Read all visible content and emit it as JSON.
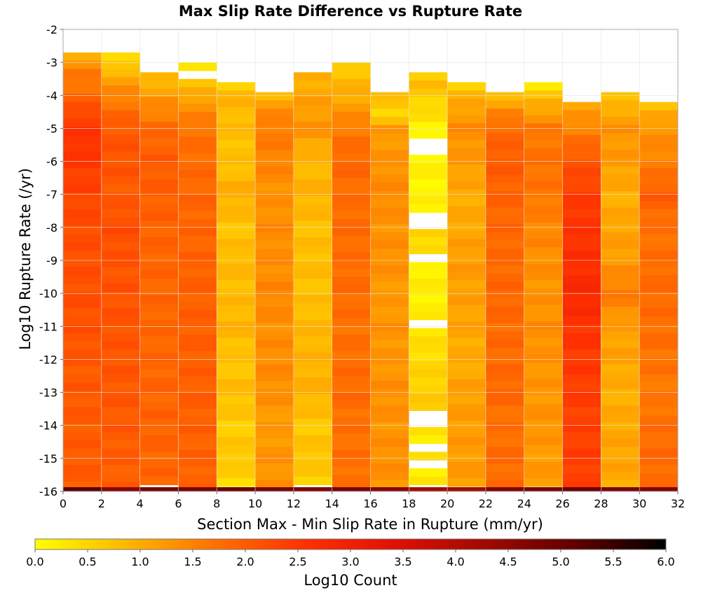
{
  "chart_data": {
    "type": "heatmap",
    "title": "Max Slip Rate Difference vs Rupture Rate",
    "xlabel": "Section Max - Min Slip Rate in Rupture (mm/yr)",
    "ylabel": "Log10 Rupture Rate (/yr)",
    "xlim": [
      0,
      32
    ],
    "ylim": [
      -16,
      -2
    ],
    "x_ticks": [
      "0",
      "2",
      "4",
      "6",
      "8",
      "10",
      "12",
      "14",
      "16",
      "18",
      "20",
      "22",
      "24",
      "26",
      "28",
      "30",
      "32"
    ],
    "y_ticks": [
      "-2",
      "-3",
      "-4",
      "-5",
      "-6",
      "-7",
      "-8",
      "-9",
      "-10",
      "-11",
      "-12",
      "-13",
      "-14",
      "-15",
      "-16"
    ],
    "grid": true,
    "x_bin_width": 2,
    "y_bin_width": 0.25,
    "colorbar": {
      "label": "Log10 Count",
      "range": [
        0,
        6
      ],
      "ticks": [
        "0.0",
        "0.5",
        "1.0",
        "1.5",
        "2.0",
        "2.5",
        "3.0",
        "3.5",
        "4.0",
        "4.5",
        "5.0",
        "5.5",
        "6.0"
      ],
      "colors": [
        "#ffff00",
        "#ffb800",
        "#ff7000",
        "#ff3000",
        "#e01000",
        "#a00a00",
        "#600000",
        "#000000"
      ]
    },
    "columns": [
      {
        "x": 1,
        "top": -2.7,
        "profile": [
          [
            -2.7,
            0.9
          ],
          [
            -3.2,
            1.5
          ],
          [
            -4,
            1.8
          ],
          [
            -4.5,
            2.3
          ],
          [
            -5.5,
            2.6
          ],
          [
            -6.5,
            2.35
          ],
          [
            -8,
            2.2
          ],
          [
            -9,
            2.15
          ],
          [
            -11,
            2.15
          ],
          [
            -12,
            2.05
          ],
          [
            -14,
            2.0
          ],
          [
            -15.9,
            2.0
          ]
        ]
      },
      {
        "x": 3,
        "top": -2.7,
        "profile": [
          [
            -2.7,
            0.2
          ],
          [
            -3.3,
            0.9
          ],
          [
            -4,
            1.5
          ],
          [
            -5,
            2.05
          ],
          [
            -6,
            2.1
          ],
          [
            -7,
            2.0
          ],
          [
            -8,
            2.2
          ],
          [
            -9,
            2.1
          ],
          [
            -11,
            2.1
          ],
          [
            -13,
            2.05
          ],
          [
            -15.9,
            1.95
          ]
        ]
      },
      {
        "x": 5,
        "top": -3.3,
        "profile": [
          [
            -3.3,
            0.7
          ],
          [
            -4,
            1.2
          ],
          [
            -5,
            1.8
          ],
          [
            -6,
            2.0
          ],
          [
            -8,
            1.9
          ],
          [
            -10,
            1.85
          ],
          [
            -12,
            1.85
          ],
          [
            -14,
            1.9
          ],
          [
            -15.9,
            1.85
          ]
        ]
      },
      {
        "x": 7,
        "top": -3.0,
        "profile": [
          [
            -3.0,
            0.3
          ],
          [
            -3.3,
            null
          ],
          [
            -3.6,
            0.6
          ],
          [
            -4,
            1.1
          ],
          [
            -5,
            1.7
          ],
          [
            -7,
            1.85
          ],
          [
            -9,
            1.9
          ],
          [
            -11,
            1.95
          ],
          [
            -13,
            1.95
          ],
          [
            -15.9,
            1.9
          ]
        ]
      },
      {
        "x": 9,
        "top": -3.6,
        "profile": [
          [
            -3.6,
            0.5
          ],
          [
            -4,
            0.9
          ],
          [
            -5,
            0.8
          ],
          [
            -6,
            0.75
          ],
          [
            -7,
            1.0
          ],
          [
            -8,
            0.7
          ],
          [
            -9,
            0.85
          ],
          [
            -10,
            0.8
          ],
          [
            -11,
            0.9
          ],
          [
            -12,
            0.7
          ],
          [
            -13,
            0.8
          ],
          [
            -14,
            0.6
          ],
          [
            -15,
            0.7
          ],
          [
            -15.9,
            0.4
          ]
        ]
      },
      {
        "x": 11,
        "top": -3.9,
        "profile": [
          [
            -3.9,
            0.6
          ],
          [
            -4.2,
            1.2
          ],
          [
            -5,
            1.6
          ],
          [
            -6,
            1.5
          ],
          [
            -7,
            1.3
          ],
          [
            -8,
            1.4
          ],
          [
            -9,
            1.35
          ],
          [
            -10,
            1.45
          ],
          [
            -11,
            1.35
          ],
          [
            -12,
            1.4
          ],
          [
            -13,
            1.35
          ],
          [
            -14,
            1.2
          ],
          [
            -15,
            1.3
          ],
          [
            -15.9,
            1.3
          ]
        ]
      },
      {
        "x": 13,
        "top": -3.3,
        "profile": [
          [
            -3.3,
            0.9
          ],
          [
            -4,
            1.1
          ],
          [
            -5,
            1.3
          ],
          [
            -6,
            0.85
          ],
          [
            -7,
            0.95
          ],
          [
            -8,
            0.75
          ],
          [
            -9,
            0.8
          ],
          [
            -10,
            0.75
          ],
          [
            -11,
            0.85
          ],
          [
            -12,
            0.9
          ],
          [
            -13,
            0.95
          ],
          [
            -14,
            0.65
          ],
          [
            -15,
            0.75
          ],
          [
            -15.9,
            0.5
          ]
        ]
      },
      {
        "x": 15,
        "top": -3.0,
        "profile": [
          [
            -3.0,
            0.6
          ],
          [
            -4,
            1.0
          ],
          [
            -5,
            1.6
          ],
          [
            -6,
            1.85
          ],
          [
            -7,
            1.75
          ],
          [
            -8,
            1.8
          ],
          [
            -9,
            1.75
          ],
          [
            -10,
            1.8
          ],
          [
            -11,
            1.7
          ],
          [
            -12,
            1.75
          ],
          [
            -13,
            1.8
          ],
          [
            -14,
            1.7
          ],
          [
            -15,
            1.75
          ],
          [
            -15.9,
            1.7
          ]
        ]
      },
      {
        "x": 17,
        "top": -3.9,
        "profile": [
          [
            -3.9,
            0.8
          ],
          [
            -4.6,
            0.5
          ],
          [
            -5,
            1.2
          ],
          [
            -6,
            1.3
          ],
          [
            -7,
            1.4
          ],
          [
            -8,
            1.3
          ],
          [
            -9,
            1.35
          ],
          [
            -10,
            1.2
          ],
          [
            -11,
            1.3
          ],
          [
            -12,
            1.25
          ],
          [
            -13,
            1.35
          ],
          [
            -14,
            1.3
          ],
          [
            -15,
            1.35
          ],
          [
            -15.9,
            1.3
          ]
        ]
      },
      {
        "x": 19,
        "top": -3.3,
        "profile": [
          [
            -3.3,
            0.5
          ],
          [
            -3.6,
            0.8
          ],
          [
            -4.5,
            0.4
          ],
          [
            -5.0,
            0.15
          ],
          [
            -5.3,
            null
          ],
          [
            -5.75,
            0.2
          ],
          [
            -6.2,
            0.15
          ],
          [
            -7.5,
            null
          ],
          [
            -8.1,
            0.5
          ],
          [
            -8.8,
            null
          ],
          [
            -9.0,
            0.2
          ],
          [
            -10.8,
            null
          ],
          [
            -11.0,
            0.3
          ],
          [
            -13.0,
            0.6
          ],
          [
            -13.5,
            null
          ],
          [
            -14.0,
            0.3
          ],
          [
            -14.5,
            null
          ],
          [
            -14.75,
            0.3
          ],
          [
            -15.0,
            null
          ],
          [
            -15.25,
            0.25
          ]
        ]
      },
      {
        "x": 21,
        "top": -3.6,
        "profile": [
          [
            -3.6,
            0.5
          ],
          [
            -4,
            0.9
          ],
          [
            -5,
            1.4
          ],
          [
            -6,
            1.2
          ],
          [
            -7,
            1.0
          ],
          [
            -8,
            1.05
          ],
          [
            -9,
            1.2
          ],
          [
            -10,
            1.15
          ],
          [
            -11,
            1.1
          ],
          [
            -12,
            1.0
          ],
          [
            -13,
            1.15
          ],
          [
            -14,
            1.2
          ],
          [
            -15.9,
            1.2
          ]
        ]
      },
      {
        "x": 23,
        "top": -3.9,
        "profile": [
          [
            -3.9,
            0.7
          ],
          [
            -4.5,
            1.4
          ],
          [
            -5,
            1.8
          ],
          [
            -6,
            2.0
          ],
          [
            -7,
            1.9
          ],
          [
            -8,
            1.85
          ],
          [
            -9,
            1.8
          ],
          [
            -10,
            1.85
          ],
          [
            -11,
            1.8
          ],
          [
            -12,
            1.8
          ],
          [
            -13,
            1.85
          ],
          [
            -14,
            1.7
          ],
          [
            -15,
            1.8
          ],
          [
            -15.9,
            1.75
          ]
        ]
      },
      {
        "x": 25,
        "top": -3.6,
        "profile": [
          [
            -3.6,
            0.2
          ],
          [
            -4.2,
            0.9
          ],
          [
            -5,
            1.6
          ],
          [
            -6,
            1.7
          ],
          [
            -7,
            1.65
          ],
          [
            -8,
            1.45
          ],
          [
            -9,
            1.35
          ],
          [
            -10,
            1.3
          ],
          [
            -11,
            1.35
          ],
          [
            -12,
            1.3
          ],
          [
            -13,
            1.25
          ],
          [
            -14,
            1.3
          ],
          [
            -15,
            1.2
          ],
          [
            -15.9,
            1.25
          ]
        ]
      },
      {
        "x": 27,
        "top": -4.2,
        "profile": [
          [
            -4.2,
            1.0
          ],
          [
            -5,
            1.5
          ],
          [
            -6,
            2.1
          ],
          [
            -7,
            2.4
          ],
          [
            -8,
            2.55
          ],
          [
            -9,
            2.6
          ],
          [
            -10,
            2.75
          ],
          [
            -11,
            2.55
          ],
          [
            -12,
            2.45
          ],
          [
            -13,
            2.4
          ],
          [
            -14,
            2.35
          ],
          [
            -15,
            2.4
          ],
          [
            -15.9,
            2.35
          ]
        ]
      },
      {
        "x": 29,
        "top": -3.9,
        "profile": [
          [
            -3.9,
            0.5
          ],
          [
            -4.3,
            0.9
          ],
          [
            -5,
            1.3
          ],
          [
            -6,
            1.2
          ],
          [
            -7,
            0.95
          ],
          [
            -8,
            1.1
          ],
          [
            -9,
            1.2
          ],
          [
            -10,
            1.6
          ],
          [
            -11,
            1.15
          ],
          [
            -12,
            1.1
          ],
          [
            -13,
            0.95
          ],
          [
            -14,
            1.05
          ],
          [
            -15,
            1.1
          ],
          [
            -15.9,
            1.0
          ]
        ]
      },
      {
        "x": 31,
        "top": -4.2,
        "profile": [
          [
            -4.2,
            0.6
          ],
          [
            -4.6,
            1.0
          ],
          [
            -5,
            1.3
          ],
          [
            -6,
            1.5
          ],
          [
            -7,
            2.0
          ],
          [
            -8,
            1.7
          ],
          [
            -9,
            1.75
          ],
          [
            -10,
            1.8
          ],
          [
            -11,
            1.75
          ],
          [
            -12,
            1.7
          ],
          [
            -13,
            1.6
          ],
          [
            -14,
            1.75
          ],
          [
            -15,
            1.8
          ],
          [
            -15.9,
            1.75
          ]
        ]
      }
    ],
    "bottom_row": {
      "y": -16,
      "values_by_column": [
        5.2,
        4.6,
        4.8,
        4.8,
        5.0,
        4.8,
        4.7,
        4.8,
        4.6,
        4.2,
        4.3,
        4.7,
        4.8,
        5.0,
        4.8,
        4.7
      ]
    }
  }
}
